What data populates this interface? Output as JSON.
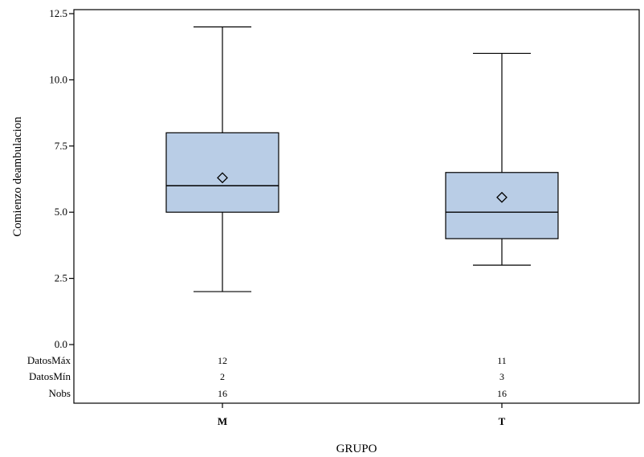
{
  "chart_data": {
    "type": "boxplot",
    "xlabel": "GRUPO",
    "ylabel": "Comienzo deambulacion",
    "ylim": [
      0,
      12.5
    ],
    "yticks": [
      "0.0",
      "2.5",
      "5.0",
      "7.5",
      "10.0",
      "12.5"
    ],
    "ytick_values": [
      0,
      2.5,
      5,
      7.5,
      10,
      12.5
    ],
    "grid": false,
    "colors": {
      "box_fill": "#b9cde6",
      "stroke": "#000000"
    },
    "categories": [
      "M",
      "T"
    ],
    "boxes": [
      {
        "category": "M",
        "min": 2,
        "q1": 5,
        "median": 6,
        "q3": 8,
        "max": 12,
        "mean": 6.3
      },
      {
        "category": "T",
        "min": 3,
        "q1": 4,
        "median": 5,
        "q3": 6.5,
        "max": 11,
        "mean": 5.56
      }
    ],
    "inset_table": {
      "rows": [
        {
          "label": "DatosMáx",
          "values": [
            "12",
            "11"
          ]
        },
        {
          "label": "DatosMín",
          "values": [
            "2",
            "3"
          ]
        },
        {
          "label": "Nobs",
          "values": [
            "16",
            "16"
          ]
        }
      ]
    }
  }
}
